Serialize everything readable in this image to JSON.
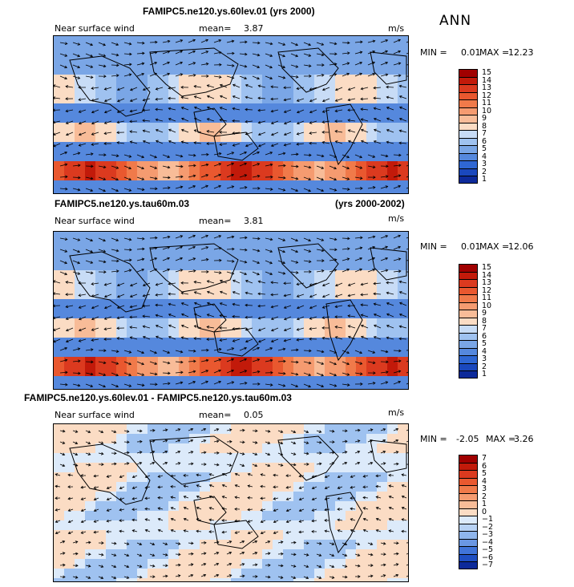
{
  "season": "ANN",
  "chart_data": [
    {
      "type": "heatmap",
      "title": "FAMIPC5.ne120.ys.60lev.01 (yrs 2000)",
      "variable": "Near surface wind",
      "mean_label": "mean=",
      "mean": "3.87",
      "units": "m/s",
      "min_label": "MIN =",
      "min": "0.01",
      "max_label": "MAX =",
      "max": "12.23",
      "levels": [
        "15",
        "14",
        "13",
        "12",
        "11",
        "10",
        "9",
        "8",
        "7",
        "6",
        "5",
        "4",
        "3",
        "2",
        "1"
      ],
      "colors": [
        "#a00000",
        "#c21a0a",
        "#db3a1f",
        "#e9582f",
        "#f07a4a",
        "#f59b70",
        "#f8bc98",
        "#fbdcc4",
        "#c8dcf6",
        "#9fc2f0",
        "#7aa6e6",
        "#5588dd",
        "#2f67d3",
        "#1a48bd",
        "#0d2a9a"
      ]
    },
    {
      "type": "heatmap",
      "title": "FAMIPC5.ne120.ys.tau60m.03",
      "title_right": "(yrs 2000-2002)",
      "variable": "Near surface wind",
      "mean_label": "mean=",
      "mean": "3.81",
      "units": "m/s",
      "min_label": "MIN =",
      "min": "0.01",
      "max_label": "MAX =",
      "max": "12.06",
      "levels": [
        "15",
        "14",
        "13",
        "12",
        "11",
        "10",
        "9",
        "8",
        "7",
        "6",
        "5",
        "4",
        "3",
        "2",
        "1"
      ],
      "colors": [
        "#a00000",
        "#c21a0a",
        "#db3a1f",
        "#e9582f",
        "#f07a4a",
        "#f59b70",
        "#f8bc98",
        "#fbdcc4",
        "#c8dcf6",
        "#9fc2f0",
        "#7aa6e6",
        "#5588dd",
        "#2f67d3",
        "#1a48bd",
        "#0d2a9a"
      ]
    },
    {
      "type": "heatmap",
      "title": "FAMIPC5.ne120.ys.60lev.01 - FAMIPC5.ne120.ys.tau60m.03",
      "variable": "Near surface wind",
      "mean_label": "mean=",
      "mean": "0.05",
      "units": "m/s",
      "min_label": "MIN =",
      "min": "-2.05",
      "max_label": "MAX =",
      "max": "3.26",
      "levels": [
        "7",
        "6",
        "5",
        "4",
        "3",
        "2",
        "1",
        "0",
        "−1",
        "−2",
        "−3",
        "−4",
        "−5",
        "−6",
        "−7"
      ],
      "colors": [
        "#a00000",
        "#c21a0a",
        "#db3a1f",
        "#e9582f",
        "#f07a4a",
        "#f59b70",
        "#f8bc98",
        "#fbdcc4",
        "#dceafa",
        "#b8d2f4",
        "#8fb5ec",
        "#6a97e3",
        "#4074d8",
        "#1f4fc2",
        "#0d2a9a"
      ]
    }
  ]
}
